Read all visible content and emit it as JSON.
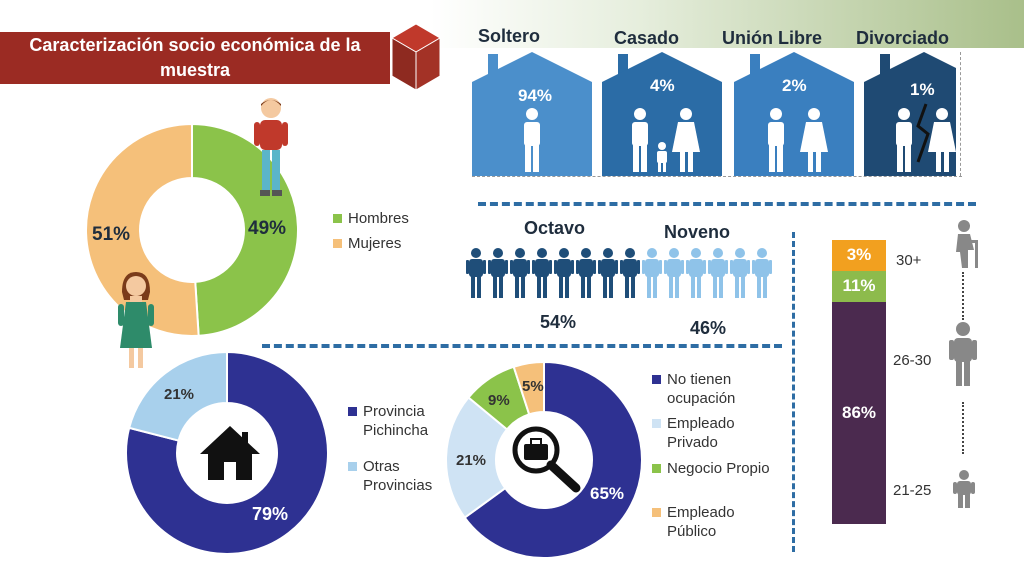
{
  "title": "Caracterización socio económica de la muestra",
  "chart_data": [
    {
      "type": "pie",
      "name": "genero",
      "categories": [
        "Hombres",
        "Mujeres"
      ],
      "values": [
        49,
        51
      ],
      "labels": [
        "49%",
        "51%"
      ],
      "colors": [
        "#8bc34a",
        "#f5c07a"
      ]
    },
    {
      "type": "bar",
      "name": "estado_civil",
      "categories": [
        "Soltero",
        "Casado",
        "Unión Libre",
        "Divorciado"
      ],
      "values": [
        94,
        4,
        2,
        1
      ],
      "labels": [
        "94%",
        "4%",
        "2%",
        "1%"
      ],
      "colors": [
        "#4b8fcb",
        "#2b6ca6",
        "#3a7fbf",
        "#1f4a73"
      ]
    },
    {
      "type": "bar",
      "name": "nivel",
      "categories": [
        "Octavo",
        "Noveno"
      ],
      "values": [
        54,
        46
      ],
      "labels": [
        "54%",
        "46%"
      ],
      "colors": [
        "#1f4e79",
        "#8fc3e9"
      ]
    },
    {
      "type": "bar",
      "name": "edad",
      "categories": [
        "30+",
        "26-30",
        "21-25"
      ],
      "values": [
        3,
        11,
        86
      ],
      "labels": [
        "3%",
        "11%",
        "86%"
      ],
      "colors": [
        "#f2a01f",
        "#8dbb4c",
        "#4b2a4f"
      ]
    },
    {
      "type": "pie",
      "name": "procedencia",
      "categories": [
        "Provincia Pichincha",
        "Otras Provincias"
      ],
      "values": [
        79,
        21
      ],
      "labels": [
        "79%",
        "21%"
      ],
      "colors": [
        "#2e3192",
        "#a8d0ec"
      ]
    },
    {
      "type": "pie",
      "name": "ocupacion",
      "categories": [
        "No tienen ocupación",
        "Empleado Privado",
        "Negocio Propio",
        "Empleado Público"
      ],
      "values": [
        65,
        21,
        9,
        5
      ],
      "labels": [
        "65%",
        "21%",
        "9%",
        "5%"
      ],
      "colors": [
        "#2e3192",
        "#cfe3f4",
        "#8bc34a",
        "#f5c07a"
      ]
    }
  ]
}
